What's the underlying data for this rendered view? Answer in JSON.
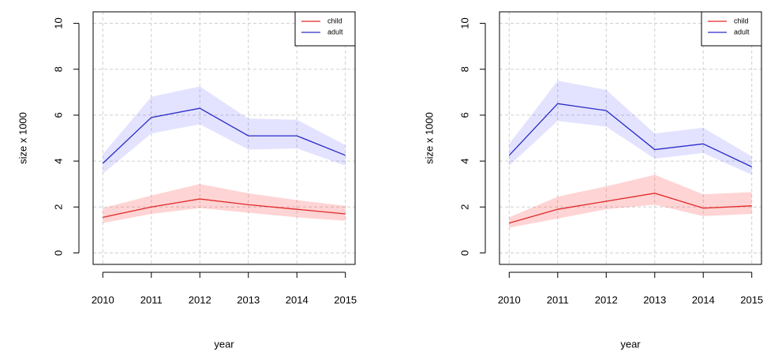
{
  "chart_data": [
    {
      "type": "line",
      "x_label": "year",
      "y_label": "size x 1000",
      "x": [
        2010,
        2011,
        2012,
        2013,
        2014,
        2015
      ],
      "xlim": [
        2009.8,
        2015.2
      ],
      "xticks": [
        2010,
        2011,
        2012,
        2013,
        2014,
        2015
      ],
      "ylim": [
        -0.5,
        10.5
      ],
      "yticks": [
        0,
        2,
        4,
        6,
        8,
        10
      ],
      "grid": true,
      "legend": "topright",
      "series": [
        {
          "name": "child",
          "color": "#e02828",
          "band_color": "rgba(255,60,60,0.22)",
          "values": [
            1.55,
            2.0,
            2.35,
            2.1,
            1.9,
            1.7
          ],
          "lower": [
            1.3,
            1.7,
            1.95,
            1.75,
            1.55,
            1.4
          ],
          "upper": [
            1.95,
            2.5,
            3.0,
            2.6,
            2.3,
            2.05
          ]
        },
        {
          "name": "adult",
          "color": "#2a2ac8",
          "band_color": "rgba(60,60,255,0.14)",
          "values": [
            3.9,
            5.9,
            6.3,
            5.1,
            5.1,
            4.25
          ],
          "lower": [
            3.45,
            5.2,
            5.6,
            4.5,
            4.55,
            3.8
          ],
          "upper": [
            4.3,
            6.8,
            7.25,
            5.85,
            5.8,
            4.7
          ]
        }
      ]
    },
    {
      "type": "line",
      "x_label": "year",
      "y_label": "size x 1000",
      "x": [
        2010,
        2011,
        2012,
        2013,
        2014,
        2015
      ],
      "xlim": [
        2009.8,
        2015.2
      ],
      "xticks": [
        2010,
        2011,
        2012,
        2013,
        2014,
        2015
      ],
      "ylim": [
        -0.5,
        10.5
      ],
      "yticks": [
        0,
        2,
        4,
        6,
        8,
        10
      ],
      "grid": true,
      "legend": "topright",
      "series": [
        {
          "name": "child",
          "color": "#e02828",
          "band_color": "rgba(255,60,60,0.22)",
          "values": [
            1.3,
            1.9,
            2.25,
            2.6,
            1.95,
            2.05
          ],
          "lower": [
            1.1,
            1.5,
            1.9,
            2.1,
            1.6,
            1.7
          ],
          "upper": [
            1.55,
            2.45,
            2.9,
            3.4,
            2.55,
            2.65
          ]
        },
        {
          "name": "adult",
          "color": "#2a2ac8",
          "band_color": "rgba(60,60,255,0.14)",
          "values": [
            4.25,
            6.5,
            6.2,
            4.5,
            4.75,
            3.75
          ],
          "lower": [
            3.8,
            5.75,
            5.5,
            4.1,
            4.35,
            3.4
          ],
          "upper": [
            4.75,
            7.5,
            7.1,
            5.2,
            5.45,
            4.2
          ]
        }
      ]
    }
  ]
}
